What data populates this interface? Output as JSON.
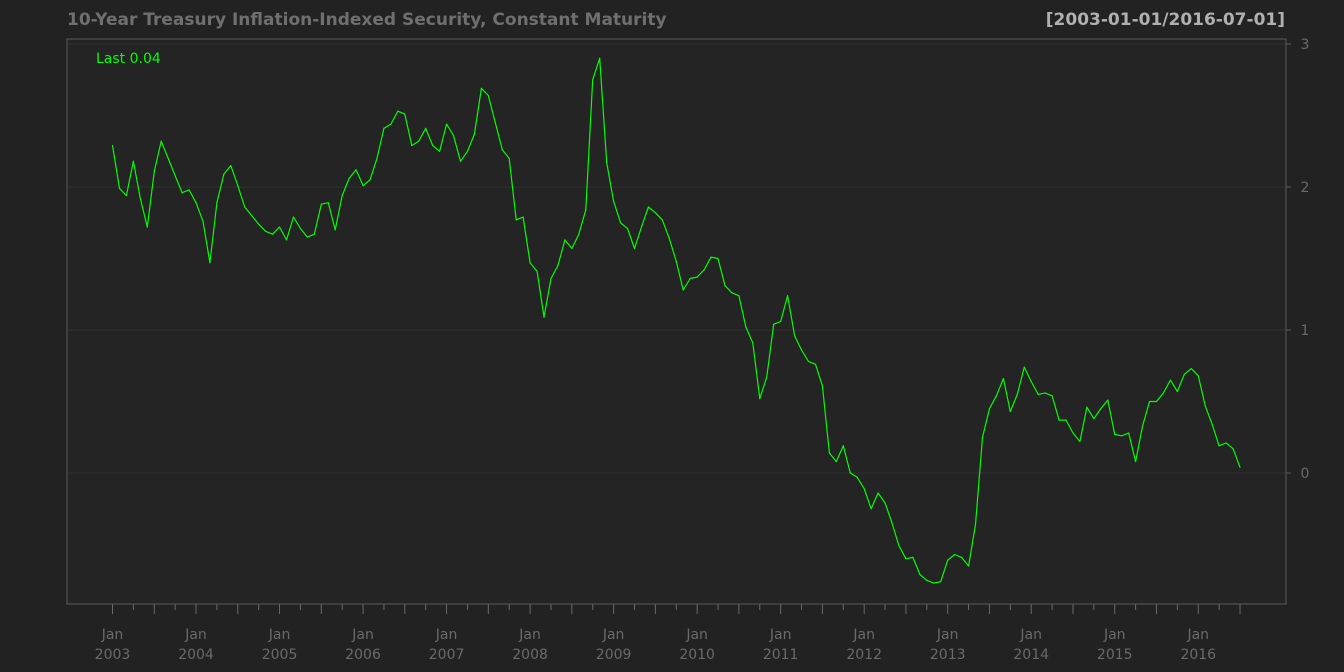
{
  "title": "10-Year Treasury Inflation-Indexed Security, Constant Maturity",
  "date_range": "[2003-01-01/2016-07-01]",
  "last_label": "Last 0.04",
  "colors": {
    "background": "#222222",
    "plot_background": "#242424",
    "title": "#6f6f6f",
    "range": "#b0b0b0",
    "axis_text": "#6a6a6a",
    "grid": "#2f2f2f",
    "line": "#00ff00"
  },
  "chart_data": {
    "type": "line",
    "frequency": "monthly",
    "start": "2003-01",
    "end": "2016-07",
    "ylim": [
      -0.92,
      3.0
    ],
    "y_ticks": [
      0,
      1,
      2,
      3
    ],
    "grid": true,
    "legend": "top-left",
    "x_tick_labels": [
      {
        "month": "Jan",
        "year": "2003"
      },
      {
        "month": "Jan",
        "year": "2004"
      },
      {
        "month": "Jan",
        "year": "2005"
      },
      {
        "month": "Jan",
        "year": "2006"
      },
      {
        "month": "Jan",
        "year": "2007"
      },
      {
        "month": "Jan",
        "year": "2008"
      },
      {
        "month": "Jan",
        "year": "2009"
      },
      {
        "month": "Jan",
        "year": "2010"
      },
      {
        "month": "Jan",
        "year": "2011"
      },
      {
        "month": "Jan",
        "year": "2012"
      },
      {
        "month": "Jan",
        "year": "2013"
      },
      {
        "month": "Jan",
        "year": "2014"
      },
      {
        "month": "Jan",
        "year": "2015"
      },
      {
        "month": "Jan",
        "year": "2016"
      }
    ],
    "values": [
      2.29,
      1.99,
      1.94,
      2.18,
      1.92,
      1.72,
      2.11,
      2.32,
      2.2,
      2.08,
      1.96,
      1.98,
      1.89,
      1.76,
      1.47,
      1.89,
      2.09,
      2.15,
      2.01,
      1.86,
      1.8,
      1.74,
      1.69,
      1.67,
      1.72,
      1.63,
      1.79,
      1.71,
      1.65,
      1.67,
      1.88,
      1.89,
      1.7,
      1.94,
      2.06,
      2.12,
      2.01,
      2.05,
      2.2,
      2.41,
      2.44,
      2.53,
      2.51,
      2.29,
      2.32,
      2.41,
      2.29,
      2.25,
      2.44,
      2.36,
      2.18,
      2.25,
      2.37,
      2.69,
      2.64,
      2.45,
      2.26,
      2.2,
      1.77,
      1.79,
      1.47,
      1.41,
      1.09,
      1.36,
      1.45,
      1.63,
      1.57,
      1.67,
      1.84,
      2.75,
      2.9,
      2.17,
      1.9,
      1.75,
      1.71,
      1.57,
      1.72,
      1.86,
      1.82,
      1.77,
      1.64,
      1.48,
      1.28,
      1.36,
      1.37,
      1.42,
      1.51,
      1.5,
      1.31,
      1.26,
      1.24,
      1.02,
      0.91,
      0.52,
      0.67,
      1.04,
      1.06,
      1.24,
      0.96,
      0.86,
      0.78,
      0.76,
      0.61,
      0.14,
      0.08,
      0.19,
      0.0,
      -0.03,
      -0.11,
      -0.25,
      -0.14,
      -0.21,
      -0.35,
      -0.51,
      -0.6,
      -0.59,
      -0.71,
      -0.75,
      -0.77,
      -0.76,
      -0.61,
      -0.57,
      -0.59,
      -0.65,
      -0.36,
      0.25,
      0.45,
      0.54,
      0.66,
      0.43,
      0.55,
      0.74,
      0.64,
      0.55,
      0.56,
      0.54,
      0.37,
      0.37,
      0.28,
      0.22,
      0.46,
      0.38,
      0.45,
      0.51,
      0.27,
      0.26,
      0.28,
      0.08,
      0.33,
      0.5,
      0.5,
      0.56,
      0.65,
      0.57,
      0.69,
      0.73,
      0.68,
      0.47,
      0.34,
      0.19,
      0.21,
      0.17,
      0.04
    ]
  }
}
